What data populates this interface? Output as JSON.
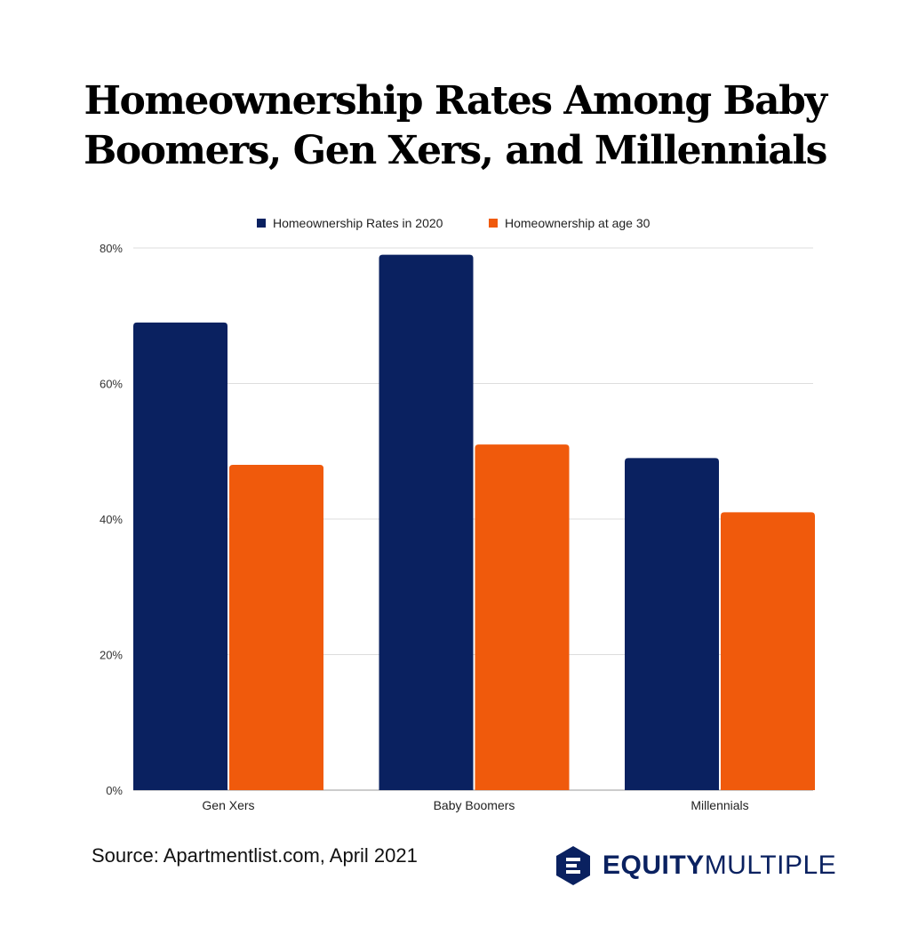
{
  "chart_data": {
    "type": "bar",
    "title": "Homeownership Rates Among Baby Boomers, Gen Xers, and Millennials",
    "categories": [
      "Gen Xers",
      "Baby Boomers",
      "Millennials"
    ],
    "series": [
      {
        "name": "Homeownership Rates in 2020",
        "values": [
          69,
          79,
          49
        ],
        "color": "#0a2160"
      },
      {
        "name": "Homeownership at age 30",
        "values": [
          48,
          51,
          41
        ],
        "color": "#f05a0c"
      }
    ],
    "ylim": [
      0,
      80
    ],
    "yticks": [
      0,
      20,
      40,
      60,
      80
    ],
    "ytick_labels": [
      "0%",
      "20%",
      "40%",
      "60%",
      "80%"
    ],
    "grid": true,
    "legend": "top-center",
    "xlabel": "",
    "ylabel": ""
  },
  "source": "Source: Apartmentlist.com, April 2021",
  "logo": {
    "bold": "EQUITY",
    "light": "MULTIPLE",
    "color": "#0a2160"
  }
}
